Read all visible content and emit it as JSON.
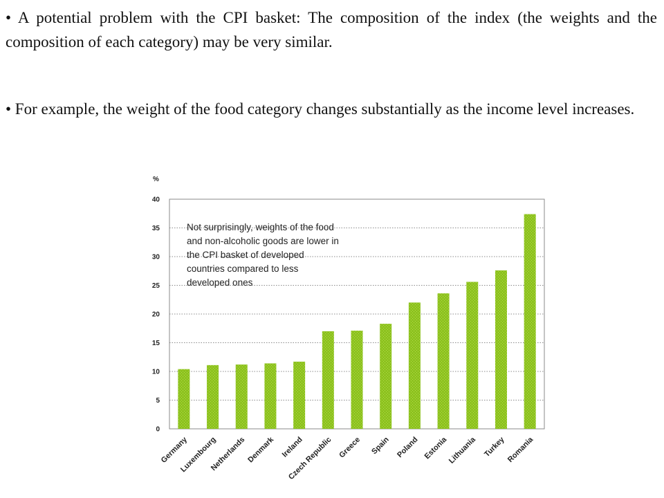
{
  "bullets": [
    "• A potential problem with the CPI basket: The composition of the index (the weights and the composition of each category) may be very similar.",
    "• For example, the weight of the food category changes substantially as the income level increases."
  ],
  "chart_data": {
    "type": "bar",
    "ylabel": "%",
    "ylim": [
      0,
      40
    ],
    "yticks": [
      0,
      5,
      10,
      15,
      20,
      25,
      30,
      35,
      40
    ],
    "grid": true,
    "categories": [
      "Germany",
      "Luxembourg",
      "Netherlands",
      "Denmark",
      "Ireland",
      "Czech Republic",
      "Greece",
      "Spain",
      "Poland",
      "Estonia",
      "Lithuania",
      "Turkey",
      "Romania"
    ],
    "values": [
      10.4,
      11.1,
      11.2,
      11.4,
      11.7,
      17.0,
      17.1,
      18.3,
      22.0,
      23.6,
      25.6,
      27.6,
      37.4
    ],
    "bar_color": "#8dc21f",
    "annotation": [
      "Not surprisingly, weights of the food",
      "and non-alcoholic goods are lower in",
      "the CPI basket of developed",
      "countries compared to less",
      "developed ones"
    ]
  }
}
